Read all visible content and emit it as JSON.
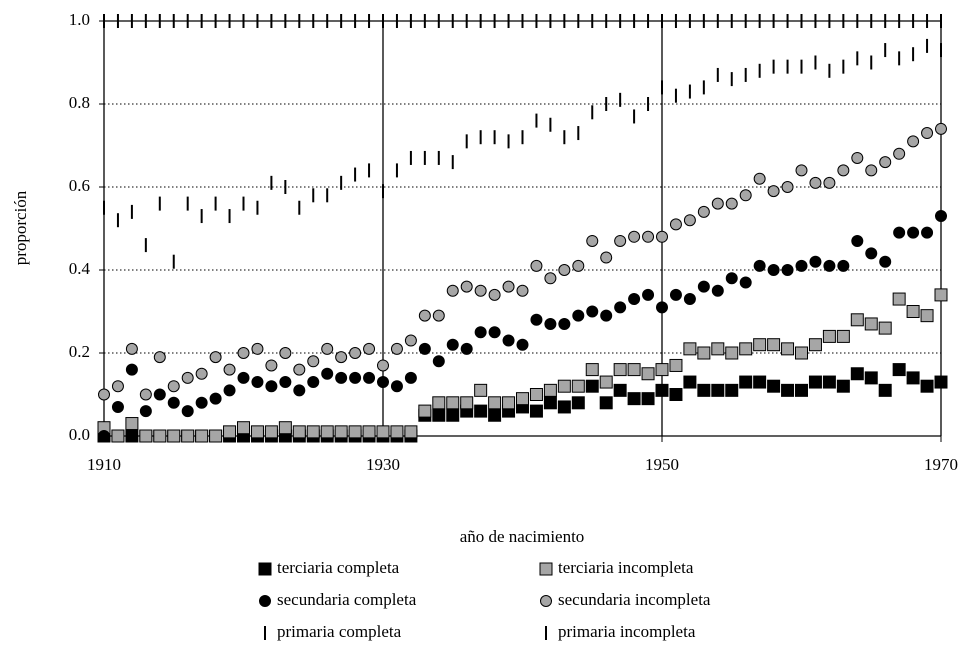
{
  "chart_data": {
    "type": "scatter",
    "x_label": "año de nacimiento",
    "y_label": "proporción",
    "xlim": [
      1910,
      1970
    ],
    "xticks": [
      1910,
      1930,
      1950,
      1970
    ],
    "ylim": [
      0,
      1
    ],
    "yticks": [
      {
        "value": 0,
        "label": "0.0"
      },
      0.2,
      0.4,
      0.6,
      0.8,
      {
        "value": 1,
        "label": "1.0"
      }
    ],
    "grid": true,
    "x": [
      1910,
      1911,
      1912,
      1913,
      1914,
      1915,
      1916,
      1917,
      1918,
      1919,
      1920,
      1921,
      1922,
      1923,
      1924,
      1925,
      1926,
      1927,
      1928,
      1929,
      1930,
      1931,
      1932,
      1933,
      1934,
      1935,
      1936,
      1937,
      1938,
      1939,
      1940,
      1941,
      1942,
      1943,
      1944,
      1945,
      1946,
      1947,
      1948,
      1949,
      1950,
      1951,
      1952,
      1953,
      1954,
      1955,
      1956,
      1957,
      1958,
      1959,
      1960,
      1961,
      1962,
      1963,
      1964,
      1965,
      1966,
      1967,
      1968,
      1969,
      1970
    ],
    "series": [
      {
        "name": "terciaria completa",
        "color": "#000000",
        "marker": "square",
        "values": [
          0,
          0,
          0,
          0,
          0,
          0,
          0,
          0,
          0,
          0,
          0,
          0,
          0,
          0,
          0,
          0,
          0,
          0,
          0,
          0,
          0,
          0,
          0,
          0.05,
          0.05,
          0.05,
          0.06,
          0.06,
          0.05,
          0.06,
          0.07,
          0.06,
          0.08,
          0.07,
          0.08,
          0.12,
          0.08,
          0.11,
          0.09,
          0.09,
          0.11,
          0.1,
          0.13,
          0.11,
          0.11,
          0.11,
          0.13,
          0.13,
          0.12,
          0.11,
          0.11,
          0.13,
          0.13,
          0.12,
          0.15,
          0.14,
          0.11,
          0.16,
          0.14,
          0.12,
          0.13
        ]
      },
      {
        "name": "terciaria incompleta",
        "color": "#a6a6a6",
        "marker": "square",
        "values": [
          0.02,
          0,
          0.03,
          0,
          0,
          0,
          0,
          0,
          0,
          0.01,
          0.02,
          0.01,
          0.01,
          0.02,
          0.01,
          0.01,
          0.01,
          0.01,
          0.01,
          0.01,
          0.01,
          0.01,
          0.01,
          0.06,
          0.08,
          0.08,
          0.08,
          0.11,
          0.08,
          0.08,
          0.09,
          0.1,
          0.11,
          0.12,
          0.12,
          0.16,
          0.13,
          0.16,
          0.16,
          0.15,
          0.16,
          0.17,
          0.21,
          0.2,
          0.21,
          0.2,
          0.21,
          0.22,
          0.22,
          0.21,
          0.2,
          0.22,
          0.24,
          0.24,
          0.28,
          0.27,
          0.26,
          0.33,
          0.3,
          0.29,
          0.34
        ]
      },
      {
        "name": "secundaria completa",
        "color": "#000000",
        "marker": "circle",
        "values": [
          0,
          0.07,
          0.16,
          0.06,
          0.1,
          0.08,
          0.06,
          0.08,
          0.09,
          0.11,
          0.14,
          0.13,
          0.12,
          0.13,
          0.11,
          0.13,
          0.15,
          0.14,
          0.14,
          0.14,
          0.13,
          0.12,
          0.14,
          0.21,
          0.18,
          0.22,
          0.21,
          0.25,
          0.25,
          0.23,
          0.22,
          0.28,
          0.27,
          0.27,
          0.29,
          0.3,
          0.29,
          0.31,
          0.33,
          0.34,
          0.31,
          0.34,
          0.33,
          0.36,
          0.35,
          0.38,
          0.37,
          0.41,
          0.4,
          0.4,
          0.41,
          0.42,
          0.41,
          0.41,
          0.47,
          0.44,
          0.42,
          0.49,
          0.49,
          0.49,
          0.53
        ]
      },
      {
        "name": "secundaria incompleta",
        "color": "#a6a6a6",
        "marker": "circle",
        "values": [
          0.1,
          0.12,
          0.21,
          0.1,
          0.19,
          0.12,
          0.14,
          0.15,
          0.19,
          0.16,
          0.2,
          0.21,
          0.17,
          0.2,
          0.16,
          0.18,
          0.21,
          0.19,
          0.2,
          0.21,
          0.17,
          0.21,
          0.23,
          0.29,
          0.29,
          0.35,
          0.36,
          0.35,
          0.34,
          0.36,
          0.35,
          0.41,
          0.38,
          0.4,
          0.41,
          0.47,
          0.43,
          0.47,
          0.48,
          0.48,
          0.48,
          0.51,
          0.52,
          0.54,
          0.56,
          0.56,
          0.58,
          0.62,
          0.59,
          0.6,
          0.64,
          0.61,
          0.61,
          0.64,
          0.67,
          0.64,
          0.66,
          0.68,
          0.71,
          0.73,
          0.74
        ]
      },
      {
        "name": "primaria completa",
        "color": "#000000",
        "marker": "bar",
        "values": [
          0.55,
          0.52,
          0.54,
          0.46,
          0.56,
          0.42,
          0.56,
          0.53,
          0.56,
          0.53,
          0.56,
          0.55,
          0.61,
          0.6,
          0.55,
          0.58,
          0.58,
          0.61,
          0.63,
          0.64,
          0.59,
          0.64,
          0.67,
          0.67,
          0.67,
          0.66,
          0.71,
          0.72,
          0.72,
          0.71,
          0.72,
          0.76,
          0.75,
          0.72,
          0.73,
          0.78,
          0.8,
          0.81,
          0.77,
          0.8,
          0.84,
          0.82,
          0.83,
          0.84,
          0.87,
          0.86,
          0.87,
          0.88,
          0.89,
          0.89,
          0.89,
          0.9,
          0.88,
          0.89,
          0.91,
          0.9,
          0.93,
          0.91,
          0.92,
          0.94,
          0.93
        ]
      },
      {
        "name": "primaria incompleta",
        "color": "#000000",
        "marker": "bar",
        "values": [
          1,
          1,
          1,
          1,
          1,
          1,
          1,
          1,
          1,
          1,
          1,
          1,
          1,
          1,
          1,
          1,
          1,
          1,
          1,
          1,
          1,
          1,
          1,
          1,
          1,
          1,
          1,
          1,
          1,
          1,
          1,
          1,
          1,
          1,
          1,
          1,
          1,
          1,
          1,
          1,
          1,
          1,
          1,
          1,
          1,
          1,
          1,
          1,
          1,
          1,
          1,
          1,
          1,
          1,
          1,
          1,
          1,
          1,
          1,
          1,
          1
        ]
      }
    ]
  }
}
